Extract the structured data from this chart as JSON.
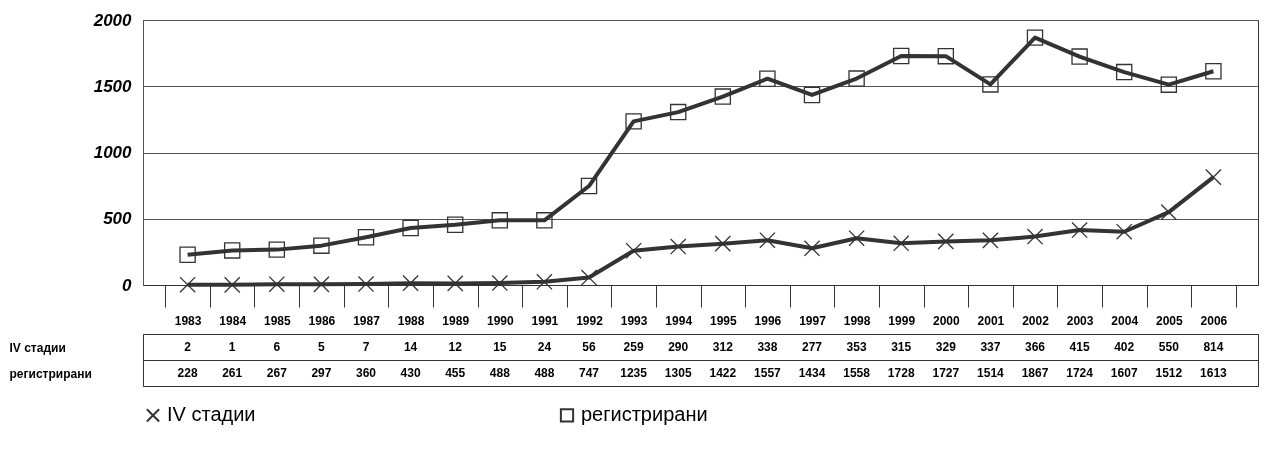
{
  "chart_data": {
    "type": "line",
    "categories": [
      "1983",
      "1984",
      "1985",
      "1986",
      "1987",
      "1988",
      "1989",
      "1990",
      "1991",
      "1992",
      "1993",
      "1994",
      "1995",
      "1996",
      "1997",
      "1998",
      "1999",
      "2000",
      "2001",
      "2002",
      "2003",
      "2004",
      "2005",
      "2006"
    ],
    "series": [
      {
        "name": "IV стадии",
        "color": "#333333",
        "marker": "cross",
        "values": [
          2,
          1,
          6,
          5,
          7,
          14,
          12,
          15,
          24,
          56,
          259,
          290,
          312,
          338,
          277,
          353,
          315,
          329,
          337,
          366,
          415,
          402,
          550,
          814
        ]
      },
      {
        "name": "регистрирани",
        "color": "#333333",
        "marker": "square",
        "values": [
          228,
          261,
          267,
          297,
          360,
          430,
          455,
          488,
          488,
          747,
          1235,
          1305,
          1422,
          1557,
          1434,
          1558,
          1728,
          1727,
          1514,
          1867,
          1724,
          1607,
          1512,
          1613
        ]
      }
    ],
    "ylim": [
      0,
      2000
    ],
    "yticks": [
      0,
      500,
      1000,
      1500,
      2000
    ],
    "grid": "y",
    "legend": "bottom",
    "data_labels": true
  }
}
